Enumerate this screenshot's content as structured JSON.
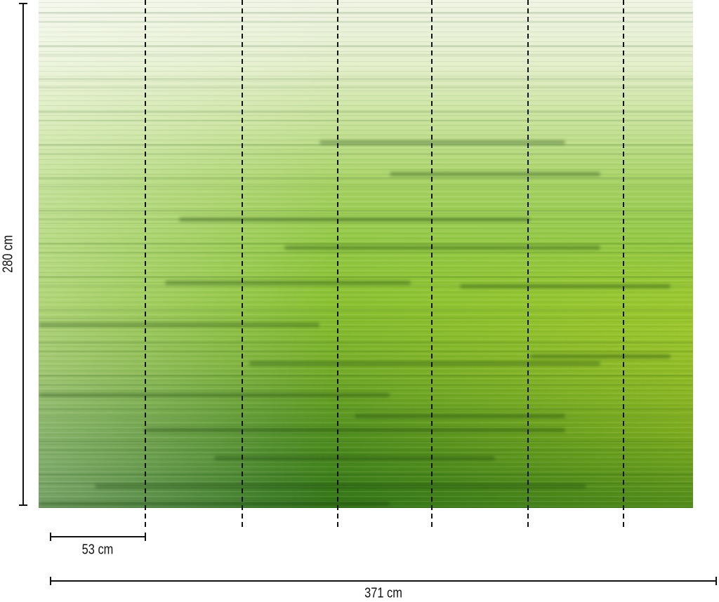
{
  "dimensions": {
    "height_label": "280 cm",
    "panel_width_label": "53 cm",
    "total_width_label": "371 cm"
  },
  "mural": {
    "image": "green horizontal streak texture",
    "panel_count": 7,
    "colors": {
      "top": "#f0f4e4",
      "middle": "#93c846",
      "bottom": "#2d7018",
      "accent_right": "#c8d82a"
    }
  },
  "colors": {
    "dimension_lines": "#111111",
    "panel_dividers": "#111111"
  }
}
